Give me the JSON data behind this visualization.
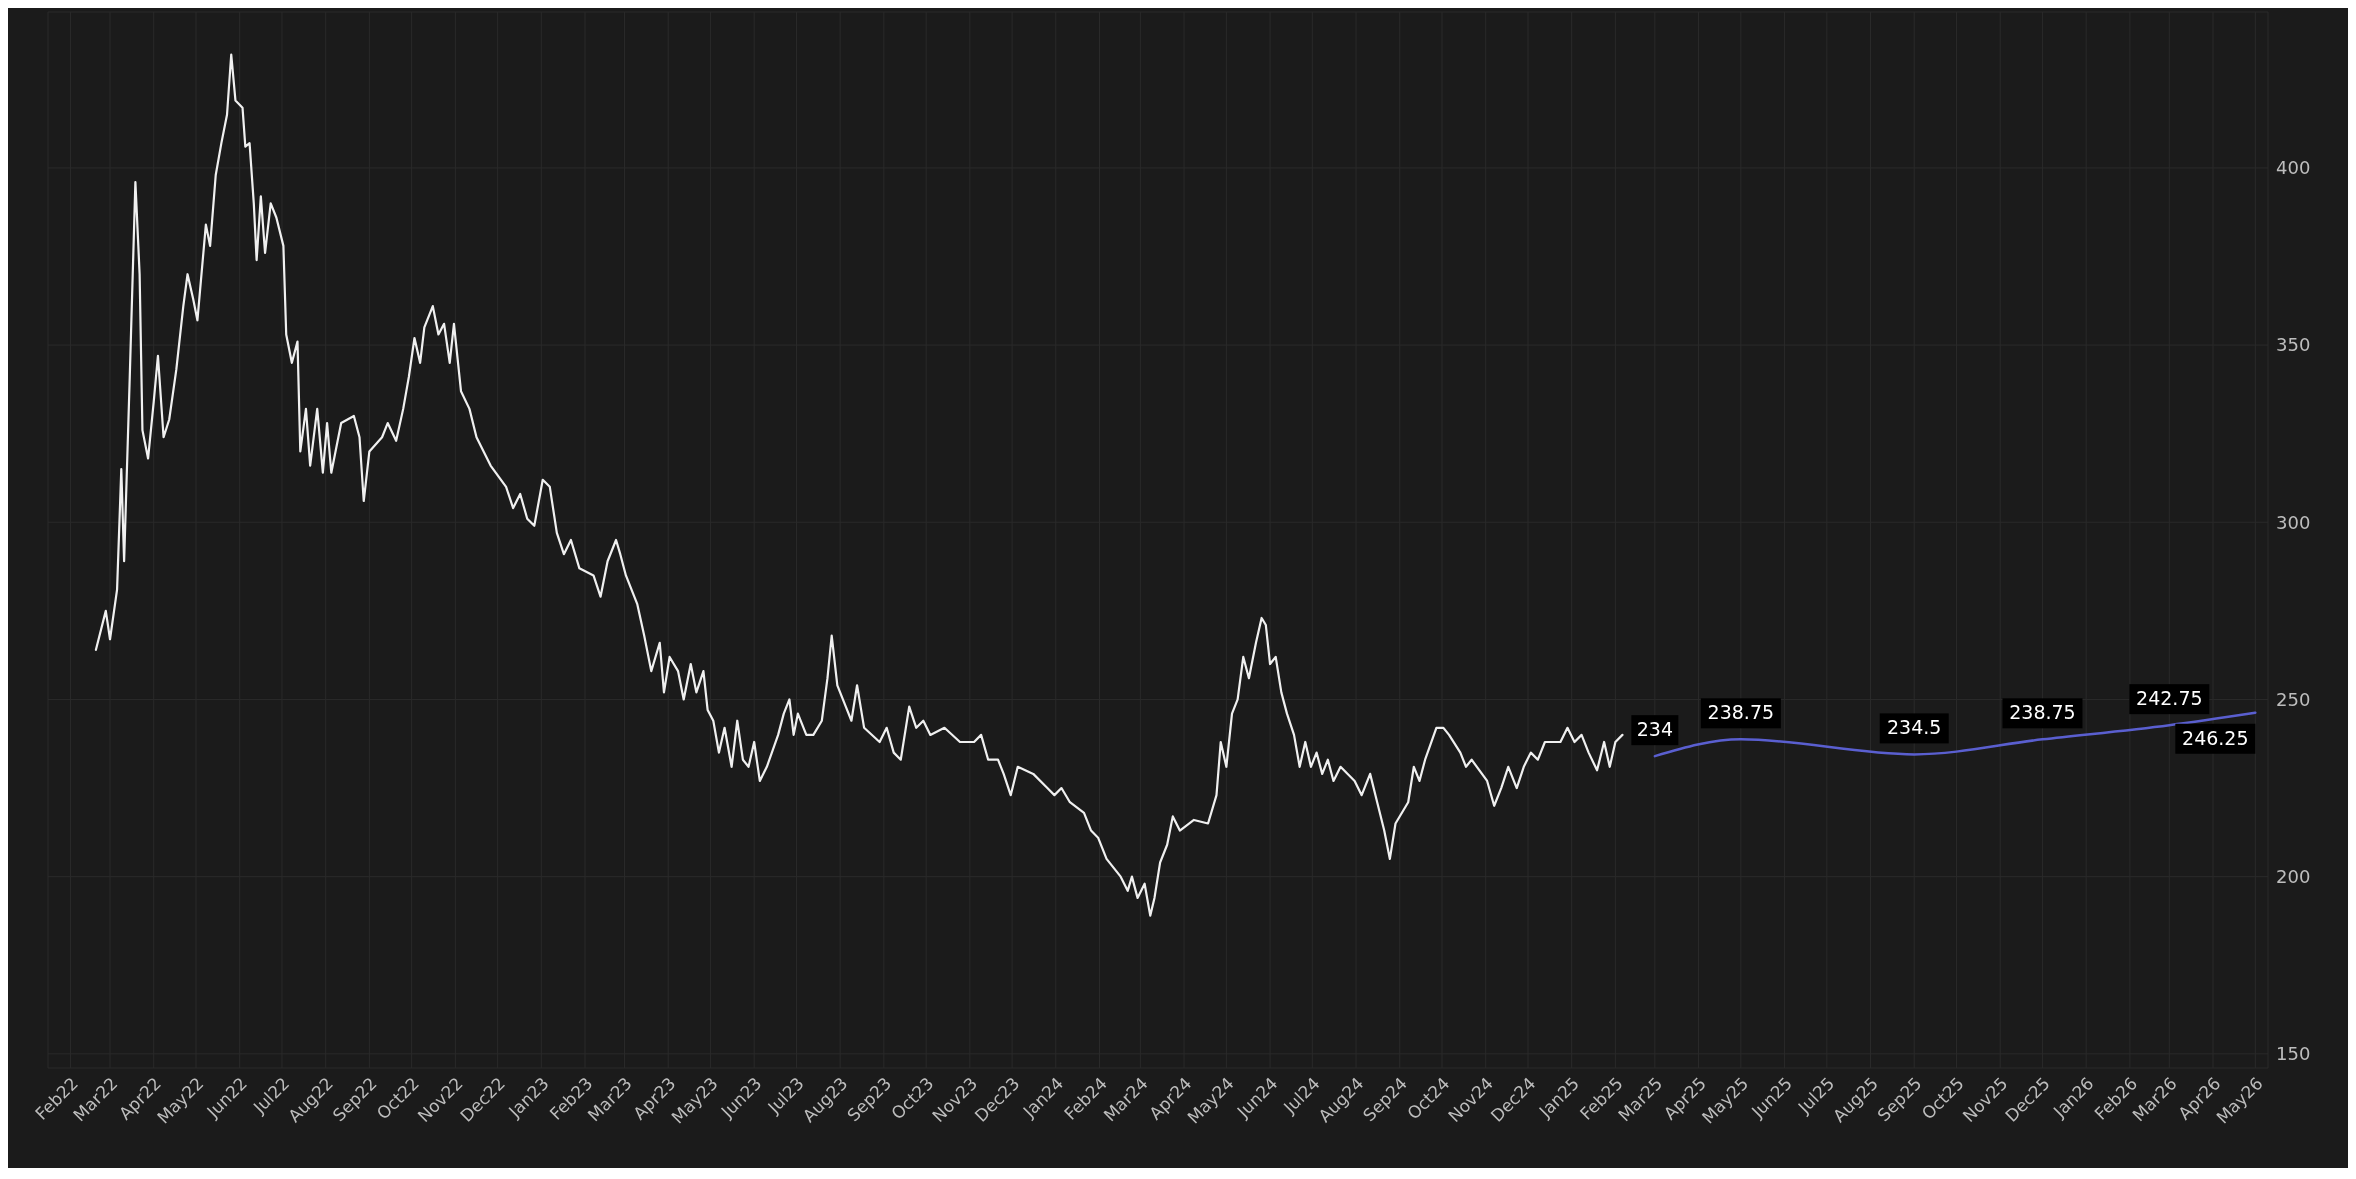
{
  "chart_data": {
    "type": "line",
    "xlim": [
      "2022-01-16",
      "2026-05-10"
    ],
    "xticks": [
      {
        "value": "2022-02-01",
        "label": "Feb22"
      },
      {
        "value": "2022-03-01",
        "label": "Mar22"
      },
      {
        "value": "2022-04-01",
        "label": "Apr22"
      },
      {
        "value": "2022-05-01",
        "label": "May22"
      },
      {
        "value": "2022-06-01",
        "label": "Jun22"
      },
      {
        "value": "2022-07-01",
        "label": "Jul22"
      },
      {
        "value": "2022-08-01",
        "label": "Aug22"
      },
      {
        "value": "2022-09-01",
        "label": "Sep22"
      },
      {
        "value": "2022-10-01",
        "label": "Oct22"
      },
      {
        "value": "2022-11-01",
        "label": "Nov22"
      },
      {
        "value": "2022-12-01",
        "label": "Dec22"
      },
      {
        "value": "2023-01-01",
        "label": "Jan23"
      },
      {
        "value": "2023-02-01",
        "label": "Feb23"
      },
      {
        "value": "2023-03-01",
        "label": "Mar23"
      },
      {
        "value": "2023-04-01",
        "label": "Apr23"
      },
      {
        "value": "2023-05-01",
        "label": "May23"
      },
      {
        "value": "2023-06-01",
        "label": "Jun23"
      },
      {
        "value": "2023-07-01",
        "label": "Jul23"
      },
      {
        "value": "2023-08-01",
        "label": "Aug23"
      },
      {
        "value": "2023-09-01",
        "label": "Sep23"
      },
      {
        "value": "2023-10-01",
        "label": "Oct23"
      },
      {
        "value": "2023-11-01",
        "label": "Nov23"
      },
      {
        "value": "2023-12-01",
        "label": "Dec23"
      },
      {
        "value": "2024-01-01",
        "label": "Jan24"
      },
      {
        "value": "2024-02-01",
        "label": "Feb24"
      },
      {
        "value": "2024-03-01",
        "label": "Mar24"
      },
      {
        "value": "2024-04-01",
        "label": "Apr24"
      },
      {
        "value": "2024-05-01",
        "label": "May24"
      },
      {
        "value": "2024-06-01",
        "label": "Jun24"
      },
      {
        "value": "2024-07-01",
        "label": "Jul24"
      },
      {
        "value": "2024-08-01",
        "label": "Aug24"
      },
      {
        "value": "2024-09-01",
        "label": "Sep24"
      },
      {
        "value": "2024-10-01",
        "label": "Oct24"
      },
      {
        "value": "2024-11-01",
        "label": "Nov24"
      },
      {
        "value": "2024-12-01",
        "label": "Dec24"
      },
      {
        "value": "2025-01-01",
        "label": "Jan25"
      },
      {
        "value": "2025-02-01",
        "label": "Feb25"
      },
      {
        "value": "2025-03-01",
        "label": "Mar25"
      },
      {
        "value": "2025-04-01",
        "label": "Apr25"
      },
      {
        "value": "2025-05-01",
        "label": "May25"
      },
      {
        "value": "2025-06-01",
        "label": "Jun25"
      },
      {
        "value": "2025-07-01",
        "label": "Jul25"
      },
      {
        "value": "2025-08-01",
        "label": "Aug25"
      },
      {
        "value": "2025-09-01",
        "label": "Sep25"
      },
      {
        "value": "2025-10-01",
        "label": "Oct25"
      },
      {
        "value": "2025-11-01",
        "label": "Nov25"
      },
      {
        "value": "2025-12-01",
        "label": "Dec25"
      },
      {
        "value": "2026-01-01",
        "label": "Jan26"
      },
      {
        "value": "2026-02-01",
        "label": "Feb26"
      },
      {
        "value": "2026-03-01",
        "label": "Mar26"
      },
      {
        "value": "2026-04-01",
        "label": "Apr26"
      },
      {
        "value": "2026-05-01",
        "label": "May26"
      }
    ],
    "ylim": [
      146,
      444
    ],
    "yticks": [
      150,
      200,
      250,
      300,
      350,
      400
    ],
    "grid": true,
    "marker": "none",
    "line_style": "solid",
    "series": [
      {
        "color": "#f0f0f0",
        "x": [
          "2022-02-19",
          "2022-02-26",
          "2022-03-01",
          "2022-03-06",
          "2022-03-09",
          "2022-03-11",
          "2022-03-15",
          "2022-03-19",
          "2022-03-22",
          "2022-03-24",
          "2022-03-28",
          "2022-04-01",
          "2022-04-04",
          "2022-04-08",
          "2022-04-12",
          "2022-04-17",
          "2022-04-22",
          "2022-04-25",
          "2022-04-29",
          "2022-05-02",
          "2022-05-08",
          "2022-05-11",
          "2022-05-15",
          "2022-05-19",
          "2022-05-23",
          "2022-05-26",
          "2022-05-29",
          "2022-06-03",
          "2022-06-05",
          "2022-06-08",
          "2022-06-11",
          "2022-06-13",
          "2022-06-16",
          "2022-06-19",
          "2022-06-23",
          "2022-06-27",
          "2022-07-02",
          "2022-07-04",
          "2022-07-08",
          "2022-07-12",
          "2022-07-14",
          "2022-07-18",
          "2022-07-21",
          "2022-07-26",
          "2022-07-30",
          "2022-08-02",
          "2022-08-05",
          "2022-08-12",
          "2022-08-21",
          "2022-08-25",
          "2022-08-28",
          "2022-09-01",
          "2022-09-10",
          "2022-09-14",
          "2022-09-20",
          "2022-09-25",
          "2022-09-29",
          "2022-10-03",
          "2022-10-07",
          "2022-10-10",
          "2022-10-16",
          "2022-10-20",
          "2022-10-24",
          "2022-10-28",
          "2022-10-31",
          "2022-11-05",
          "2022-11-11",
          "2022-11-16",
          "2022-11-26",
          "2022-12-07",
          "2022-12-12",
          "2022-12-17",
          "2022-12-22",
          "2022-12-27",
          "2023-01-02",
          "2023-01-07",
          "2023-01-12",
          "2023-01-17",
          "2023-01-22",
          "2023-01-28",
          "2023-02-07",
          "2023-02-12",
          "2023-02-17",
          "2023-02-23",
          "2023-02-26",
          "2023-03-02",
          "2023-03-10",
          "2023-03-15",
          "2023-03-20",
          "2023-03-26",
          "2023-03-29",
          "2023-04-02",
          "2023-04-08",
          "2023-04-12",
          "2023-04-17",
          "2023-04-21",
          "2023-04-26",
          "2023-04-29",
          "2023-05-03",
          "2023-05-07",
          "2023-05-11",
          "2023-05-16",
          "2023-05-20",
          "2023-05-24",
          "2023-05-28",
          "2023-06-01",
          "2023-06-05",
          "2023-06-10",
          "2023-06-18",
          "2023-06-22",
          "2023-06-26",
          "2023-06-29",
          "2023-07-02",
          "2023-07-08",
          "2023-07-13",
          "2023-07-19",
          "2023-07-23",
          "2023-07-26",
          "2023-07-30",
          "2023-08-05",
          "2023-08-09",
          "2023-08-13",
          "2023-08-18",
          "2023-08-29",
          "2023-09-03",
          "2023-09-08",
          "2023-09-13",
          "2023-09-19",
          "2023-09-24",
          "2023-09-29",
          "2023-10-04",
          "2023-10-14",
          "2023-10-25",
          "2023-11-04",
          "2023-11-09",
          "2023-11-14",
          "2023-11-21",
          "2023-11-25",
          "2023-11-30",
          "2023-12-05",
          "2023-12-16",
          "2023-12-26",
          "2023-12-31",
          "2024-01-05",
          "2024-01-11",
          "2024-01-21",
          "2024-01-26",
          "2024-01-31",
          "2024-02-06",
          "2024-02-16",
          "2024-02-21",
          "2024-02-24",
          "2024-02-28",
          "2024-03-04",
          "2024-03-08",
          "2024-03-11",
          "2024-03-15",
          "2024-03-20",
          "2024-03-24",
          "2024-03-29",
          "2024-04-08",
          "2024-04-18",
          "2024-04-24",
          "2024-04-27",
          "2024-05-01",
          "2024-05-05",
          "2024-05-09",
          "2024-05-13",
          "2024-05-17",
          "2024-05-22",
          "2024-05-26",
          "2024-05-29",
          "2024-06-01",
          "2024-06-05",
          "2024-06-09",
          "2024-06-13",
          "2024-06-18",
          "2024-06-22",
          "2024-06-26",
          "2024-06-30",
          "2024-07-04",
          "2024-07-08",
          "2024-07-12",
          "2024-07-16",
          "2024-07-21",
          "2024-07-31",
          "2024-08-05",
          "2024-08-11",
          "2024-08-16",
          "2024-08-21",
          "2024-08-25",
          "2024-08-29",
          "2024-09-07",
          "2024-09-11",
          "2024-09-15",
          "2024-09-19",
          "2024-09-27",
          "2024-10-02",
          "2024-10-06",
          "2024-10-14",
          "2024-10-18",
          "2024-10-22",
          "2024-11-02",
          "2024-11-07",
          "2024-11-12",
          "2024-11-17",
          "2024-11-23",
          "2024-11-28",
          "2024-12-03",
          "2024-12-08",
          "2024-12-13",
          "2024-12-24",
          "2024-12-29",
          "2025-01-03",
          "2025-01-08",
          "2025-01-13",
          "2025-01-19",
          "2025-01-24",
          "2025-01-28",
          "2025-02-01",
          "2025-02-06"
        ],
        "values": [
          264,
          275,
          267,
          281,
          315,
          289,
          341,
          396,
          370,
          326,
          318,
          334,
          347,
          324,
          329,
          343,
          361,
          370,
          363,
          357,
          384,
          378,
          398,
          407,
          415,
          432,
          419,
          417,
          406,
          407,
          390,
          374,
          392,
          376,
          390,
          386,
          378,
          353,
          345,
          351,
          320,
          332,
          316,
          332,
          314,
          328,
          314,
          328,
          330,
          324,
          306,
          320,
          324,
          328,
          323,
          332,
          341,
          352,
          345,
          355,
          361,
          353,
          356,
          345,
          356,
          337,
          332,
          324,
          316,
          310,
          304,
          308,
          301,
          299,
          312,
          310,
          297,
          291,
          295,
          287,
          285,
          279,
          289,
          295,
          291,
          285,
          277,
          268,
          258,
          266,
          252,
          262,
          258,
          250,
          260,
          252,
          258,
          247,
          244,
          235,
          242,
          231,
          244,
          233,
          231,
          238,
          227,
          231,
          240,
          246,
          250,
          240,
          246,
          240,
          240,
          244,
          256,
          268,
          254,
          248,
          244,
          254,
          242,
          238,
          242,
          235,
          233,
          248,
          242,
          244,
          240,
          242,
          238,
          238,
          240,
          233,
          233,
          229,
          223,
          231,
          229,
          225,
          223,
          225,
          221,
          218,
          213,
          211,
          205,
          200,
          196,
          200,
          194,
          198,
          189,
          194,
          204,
          209,
          217,
          213,
          216,
          215,
          223,
          238,
          231,
          246,
          250,
          262,
          256,
          266,
          273,
          271,
          260,
          262,
          252,
          246,
          240,
          231,
          238,
          231,
          235,
          229,
          233,
          227,
          231,
          227,
          223,
          229,
          221,
          213,
          205,
          215,
          221,
          231,
          227,
          233,
          242,
          242,
          240,
          235,
          231,
          233,
          227,
          220,
          225,
          231,
          225,
          231,
          235,
          233,
          238,
          238,
          242,
          238,
          240,
          235,
          230,
          238,
          231,
          238,
          240
        ]
      },
      {
        "color": "#5a5fd0",
        "x": [
          "2025-03-01",
          "2025-05-01",
          "2025-09-01",
          "2025-12-01",
          "2026-03-01",
          "2026-05-01"
        ],
        "values": [
          234,
          238.75,
          234.5,
          238.75,
          242.75,
          246.25
        ],
        "value_labels": [
          "234",
          "238.75",
          "234.5",
          "238.75",
          "242.75",
          "246.25"
        ]
      }
    ]
  }
}
